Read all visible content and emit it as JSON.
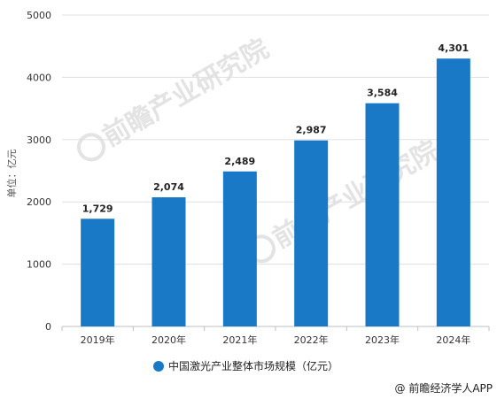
{
  "chart_data": {
    "type": "bar",
    "categories": [
      "2019年",
      "2020年",
      "2021年",
      "2022年",
      "2023年",
      "2024年"
    ],
    "series": [
      {
        "name": "中国激光产业整体市场规模（亿元）",
        "values": [
          1729,
          2074,
          2489,
          2987,
          3584,
          4301
        ],
        "value_labels": [
          "1,729",
          "2,074",
          "2,489",
          "2,987",
          "3,584",
          "4,301"
        ],
        "color": "#1a79c6"
      }
    ],
    "ylabel": "单位：亿元",
    "ylim": [
      0,
      5000
    ],
    "yticks": [
      0,
      1000,
      2000,
      3000,
      4000,
      5000
    ],
    "grid": true,
    "legend_position": "bottom"
  },
  "source": "@ 前瞻经济学人APP",
  "watermark": {
    "text": "前瞻产业研究院",
    "icon": "qianzhan-logo-icon"
  }
}
